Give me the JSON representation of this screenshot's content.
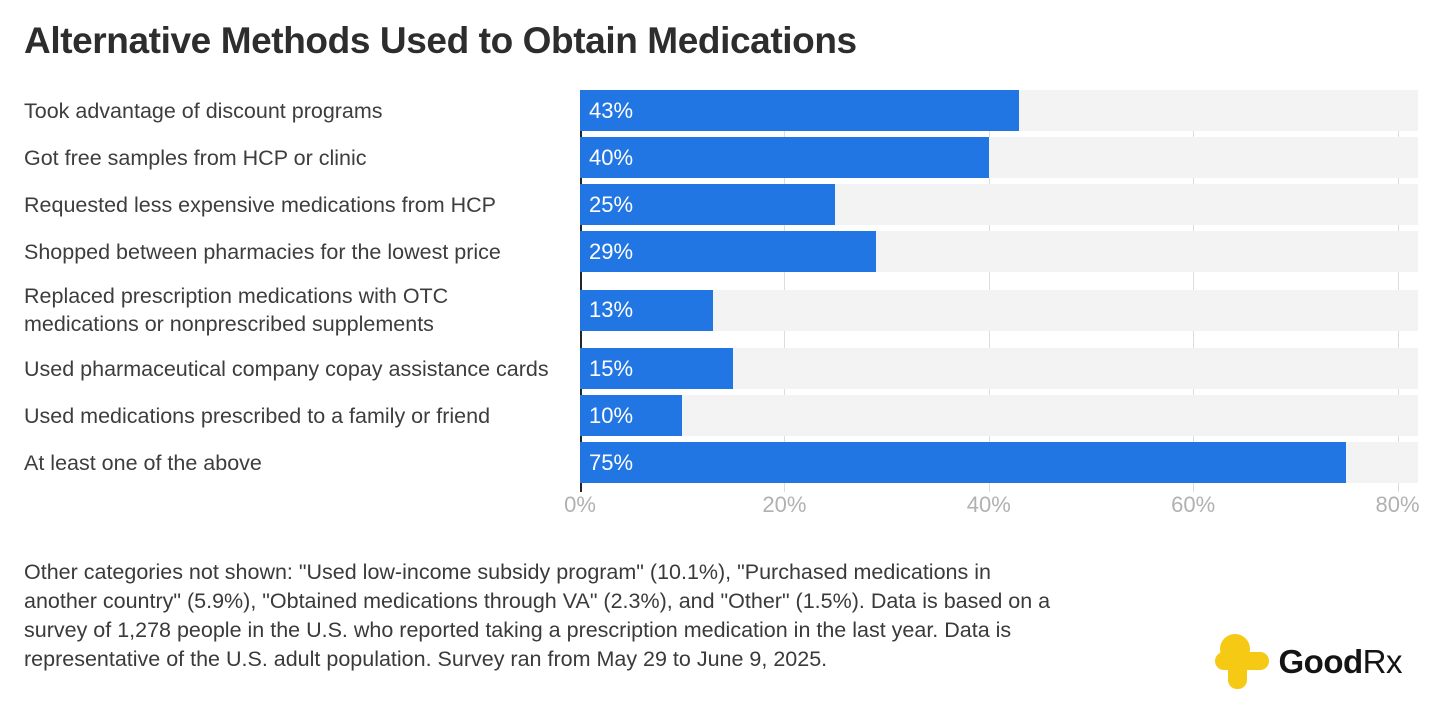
{
  "title": "Alternative Methods Used to Obtain Medications",
  "chart_data": {
    "type": "bar",
    "orientation": "horizontal",
    "title": "Alternative Methods Used to Obtain Medications",
    "categories": [
      "Took advantage of discount programs",
      "Got free samples from HCP or clinic",
      "Requested less expensive medications from HCP",
      "Shopped between pharmacies for the lowest price",
      "Replaced prescription medications with OTC medications or nonprescribed supplements",
      "Used pharmaceutical company copay assistance cards",
      "Used medications prescribed to a family or friend",
      "At least one of the above"
    ],
    "values": [
      43,
      40,
      25,
      29,
      13,
      15,
      10,
      75
    ],
    "value_labels": [
      "43%",
      "40%",
      "25%",
      "29%",
      "13%",
      "15%",
      "10%",
      "75%"
    ],
    "x_ticks": [
      {
        "value": 0,
        "label": "0%"
      },
      {
        "value": 20,
        "label": "20%"
      },
      {
        "value": 40,
        "label": "40%"
      },
      {
        "value": 60,
        "label": "60%"
      },
      {
        "value": 80,
        "label": "80%"
      }
    ],
    "xlim": [
      0,
      82
    ],
    "grid": "vertical",
    "legend": "none",
    "bar_color": "#2176e3",
    "track_color": "#f3f3f3",
    "axis_line_color": "#262626",
    "tick_label_color": "#b1b1b1"
  },
  "footnote": "Other categories not shown: \"Used low-income subsidy program\" (10.1%), \"Purchased medications in another country\" (5.9%), \"Obtained medications through VA\" (2.3%), and \"Other\" (1.5%). Data is based on a survey of 1,278 people in the U.S. who reported taking a prescription medication in the last year. Data is representative of the U.S. adult population. Survey ran from May 29 to June 9, 2025.",
  "logo": {
    "brand_bold": "Good",
    "brand_regular": "Rx",
    "icon_color": "#f6c915"
  }
}
